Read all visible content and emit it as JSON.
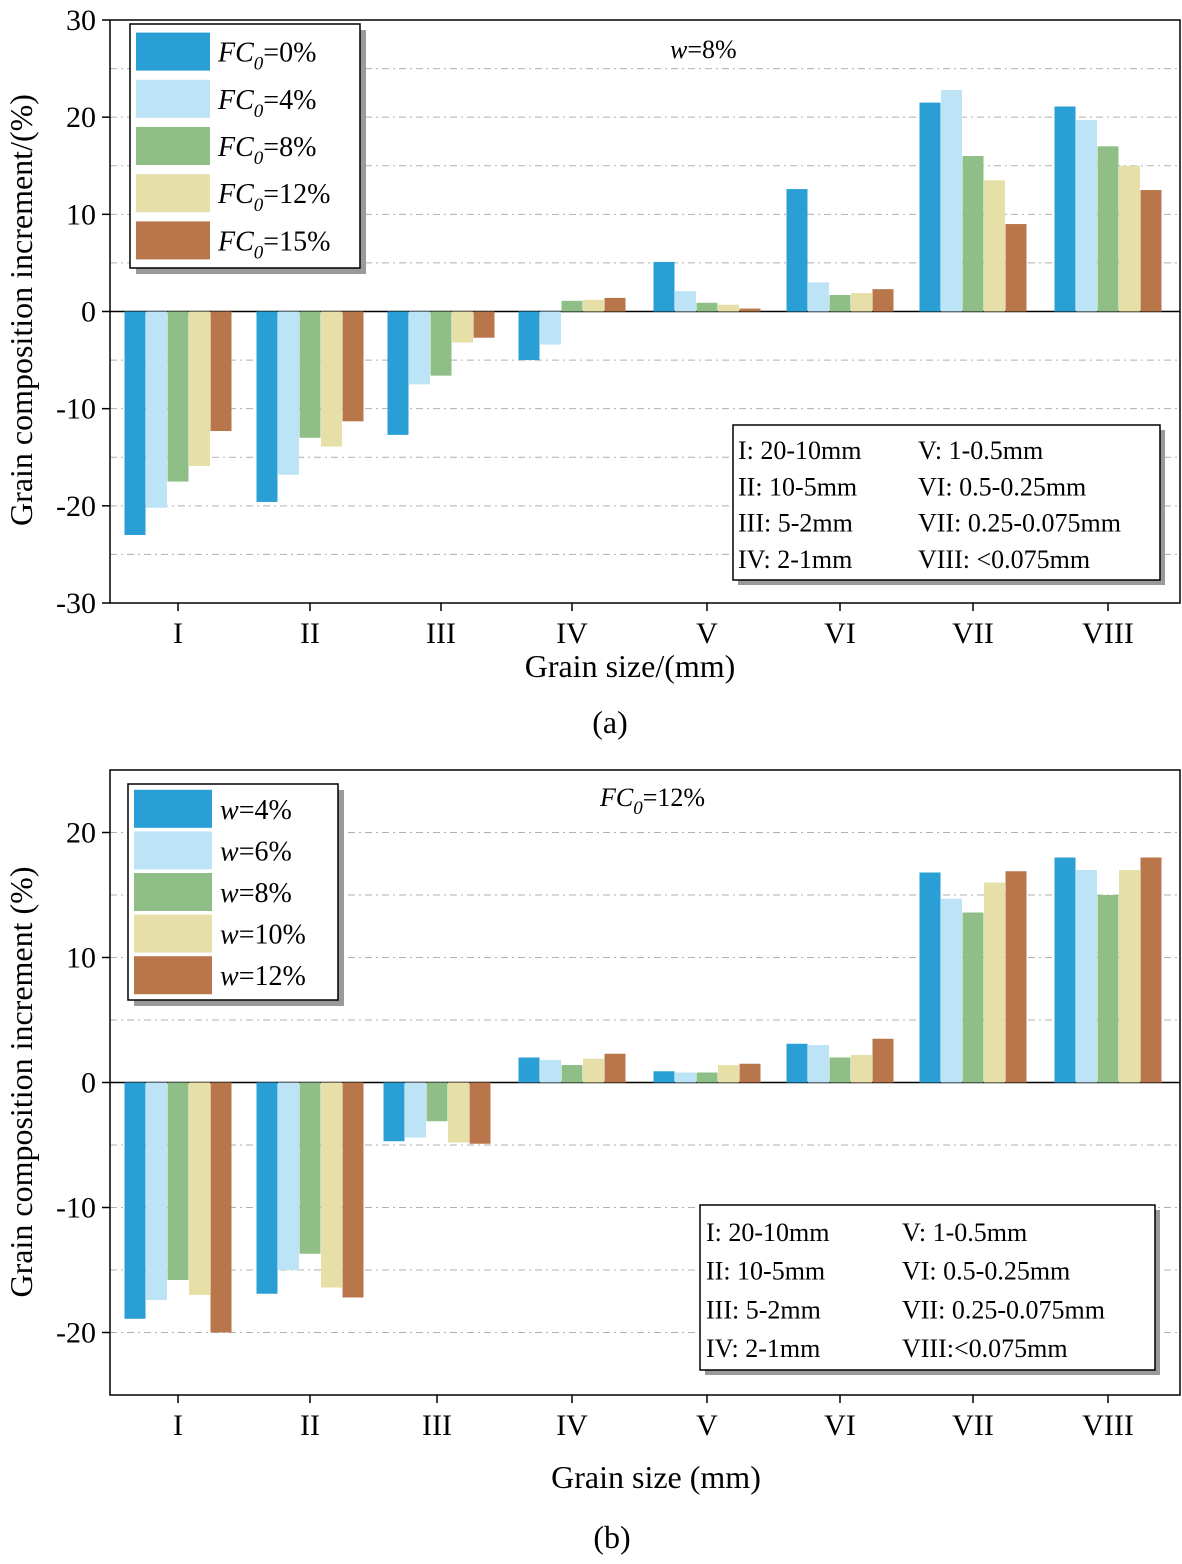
{
  "charts": [
    {
      "caption": "(a)",
      "note": {
        "main": "w",
        "rest": "=8%"
      },
      "legend_key": [
        [
          "I:  20-10mm",
          "V:  1-0.5mm"
        ],
        [
          "II: 10-5mm",
          "VI: 0.5-0.25mm"
        ],
        [
          "III: 5-2mm",
          "VII: 0.25-0.075mm"
        ],
        [
          "IV: 2-1mm",
          "VIII: <0.075mm"
        ]
      ]
    },
    {
      "caption": "(b)",
      "note": {
        "main": "FC",
        "sub": "0",
        "rest": "=12%"
      },
      "legend_key": [
        [
          "I:  20-10mm",
          "V:  1-0.5mm"
        ],
        [
          "II: 10-5mm",
          "VI: 0.5-0.25mm"
        ],
        [
          "III: 5-2mm",
          "VII: 0.25-0.075mm"
        ],
        [
          "IV: 2-1mm",
          "VIII:<0.075mm"
        ]
      ]
    }
  ],
  "colors": [
    "#2a9fd6",
    "#bde3f7",
    "#8fbf86",
    "#e6dfa8",
    "#b8764a"
  ],
  "chart_data": [
    {
      "type": "bar",
      "xlabel": "Grain size/(mm)",
      "ylabel": "Grain composition increment/(%)",
      "ylim": [
        -30,
        30
      ],
      "yticks": [
        -30,
        -20,
        -10,
        0,
        10,
        20,
        30
      ],
      "grid": "horizontal dash-dot",
      "legend_position": "top-left",
      "categories": [
        "I",
        "II",
        "III",
        "IV",
        "V",
        "VI",
        "VII",
        "VIII"
      ],
      "series": [
        {
          "name": {
            "main": "FC",
            "sub": "0",
            "rest": "=0%"
          },
          "values": [
            -23,
            -19.6,
            -12.7,
            -5,
            5.1,
            12.6,
            21.5,
            21.1
          ]
        },
        {
          "name": {
            "main": "FC",
            "sub": "0",
            "rest": "=4%"
          },
          "values": [
            -20.2,
            -16.8,
            -7.5,
            -3.4,
            2.1,
            3,
            22.8,
            19.7
          ]
        },
        {
          "name": {
            "main": "FC",
            "sub": "0",
            "rest": "=8%"
          },
          "values": [
            -17.5,
            -13,
            -6.6,
            1.1,
            0.9,
            1.7,
            16,
            17
          ]
        },
        {
          "name": {
            "main": "FC",
            "sub": "0",
            "rest": "=12%"
          },
          "values": [
            -15.9,
            -13.9,
            -3.2,
            1.2,
            0.7,
            1.9,
            13.5,
            15
          ]
        },
        {
          "name": {
            "main": "FC",
            "sub": "0",
            "rest": "=15%"
          },
          "values": [
            -12.3,
            -11.3,
            -2.7,
            1.4,
            0.3,
            2.3,
            9,
            12.5
          ]
        }
      ]
    },
    {
      "type": "bar",
      "xlabel": "Grain size (mm)",
      "ylabel": "Grain composition increment (%)",
      "ylim": [
        -25,
        25
      ],
      "yticks": [
        -20,
        -10,
        0,
        10,
        20
      ],
      "grid": "horizontal dash-dot",
      "legend_position": "top-left",
      "categories": [
        "I",
        "II",
        "III",
        "IV",
        "V",
        "VI",
        "VII",
        "VIII"
      ],
      "series": [
        {
          "name": {
            "main": "w",
            "rest": "=4%"
          },
          "values": [
            -18.9,
            -16.9,
            -4.7,
            2,
            0.9,
            3.1,
            16.8,
            18
          ]
        },
        {
          "name": {
            "main": "w",
            "rest": "=6%"
          },
          "values": [
            -17.4,
            -15,
            -4.4,
            1.8,
            0.8,
            3,
            14.7,
            17
          ]
        },
        {
          "name": {
            "main": "w",
            "rest": "=8%"
          },
          "values": [
            -15.8,
            -13.7,
            -3.1,
            1.4,
            0.8,
            2,
            13.6,
            15
          ]
        },
        {
          "name": {
            "main": "w",
            "rest": "=10%"
          },
          "values": [
            -17,
            -16.4,
            -4.8,
            1.9,
            1.4,
            2.2,
            16,
            17
          ]
        },
        {
          "name": {
            "main": "w",
            "rest": "=12%"
          },
          "values": [
            -20,
            -17.2,
            -4.9,
            2.3,
            1.5,
            3.5,
            16.9,
            18
          ]
        }
      ]
    }
  ]
}
